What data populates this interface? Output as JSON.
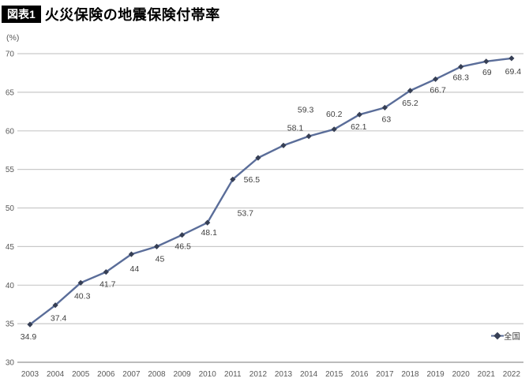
{
  "header": {
    "badge": "図表1",
    "title": "火災保険の地震保険付帯率"
  },
  "chart_data": {
    "type": "line",
    "title": "火災保険の地震保険付帯率",
    "unit_label": "(%)",
    "categories": [
      "2003",
      "2004",
      "2005",
      "2006",
      "2007",
      "2008",
      "2009",
      "2010",
      "2011",
      "2012",
      "2013",
      "2014",
      "2015",
      "2016",
      "2017",
      "2018",
      "2019",
      "2020",
      "2021",
      "2022"
    ],
    "series": [
      {
        "name": "全国",
        "values": [
          34.9,
          37.4,
          40.3,
          41.7,
          44,
          45,
          46.5,
          48.1,
          53.7,
          56.5,
          58.1,
          59.3,
          60.2,
          62.1,
          63,
          65.2,
          66.7,
          68.3,
          69,
          69.4
        ],
        "value_labels": [
          "34.9",
          "37.4",
          "40.3",
          "41.7",
          "44",
          "45",
          "46.5",
          "48.1",
          "53.7",
          "56.5",
          "58.1",
          "59.3",
          "60.2",
          "62.1",
          "63",
          "65.2",
          "66.7",
          "68.3",
          "69",
          "69.4"
        ],
        "labels_above_indices": [
          10,
          11,
          12
        ]
      }
    ],
    "ylim": [
      30,
      70
    ],
    "yticks": [
      30,
      35,
      40,
      45,
      50,
      55,
      60,
      65,
      70
    ],
    "grid": "horizontal",
    "legend": {
      "label": "全国",
      "position": "inside-bottom-right"
    }
  },
  "colors": {
    "line": "#5a6d99",
    "marker": "#363f55",
    "grid": "#c9c9c9",
    "axis_line": "#a6a6a6",
    "tick_label": "#595959",
    "data_label": "#3f3f3f",
    "title_text": "#000000",
    "badge_bg": "#000000",
    "badge_text": "#ffffff",
    "background": "#ffffff"
  }
}
